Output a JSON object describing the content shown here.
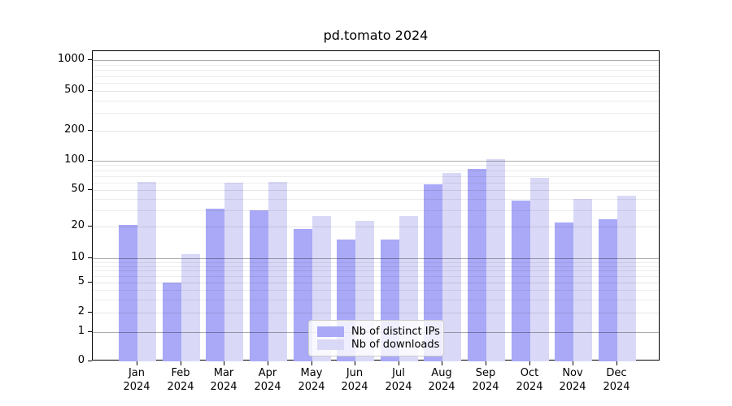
{
  "chart_data": {
    "type": "bar",
    "title": "pd.tomato 2024",
    "categories": [
      "Jan 2024",
      "Feb 2024",
      "Mar 2024",
      "Apr 2024",
      "May 2024",
      "Jun 2024",
      "Jul 2024",
      "Aug 2024",
      "Sep 2024",
      "Oct 2024",
      "Nov 2024",
      "Dec 2024"
    ],
    "series": [
      {
        "name": "Nb of distinct IPs",
        "color": "#a9a9f7",
        "values": [
          21,
          5,
          31,
          30,
          19,
          15,
          15,
          57,
          83,
          38,
          22,
          24
        ]
      },
      {
        "name": "Nb of downloads",
        "color": "#d9d9f7",
        "values": [
          61,
          11,
          60,
          61,
          26,
          23,
          26,
          75,
          103,
          67,
          40,
          43
        ]
      }
    ],
    "xlabel": "",
    "ylabel": "",
    "yscale": "symlog",
    "y_ticks": [
      0,
      1,
      2,
      5,
      10,
      20,
      50,
      100,
      200,
      500,
      1000
    ],
    "y_minor_gridlines": [
      3,
      4,
      6,
      7,
      8,
      9,
      30,
      40,
      60,
      70,
      80,
      90,
      300,
      400,
      600,
      700,
      800,
      900
    ],
    "ylim": [
      0,
      1300
    ],
    "grid": "horizontal major and minor gridlines, drawn above bars",
    "legend_position": "inside axes, lower center"
  }
}
